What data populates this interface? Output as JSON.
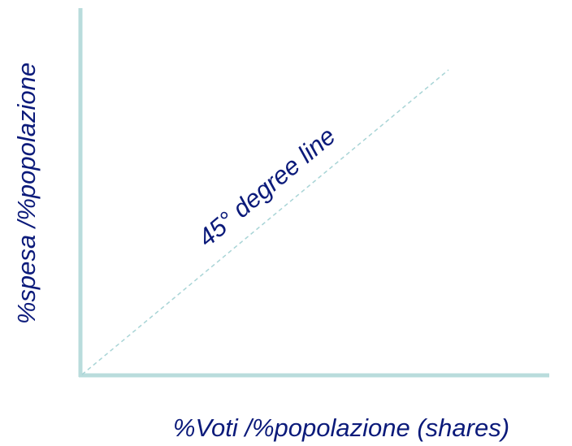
{
  "diagram": {
    "y_axis_label": "%spesa /%popolazione",
    "x_axis_label": "%Voti /%popolazione (shares)",
    "line_label": "45°  degree line",
    "colors": {
      "axis": "#b9dcdc",
      "line": "#a8d4d6",
      "text": "#0b1a7a"
    }
  }
}
